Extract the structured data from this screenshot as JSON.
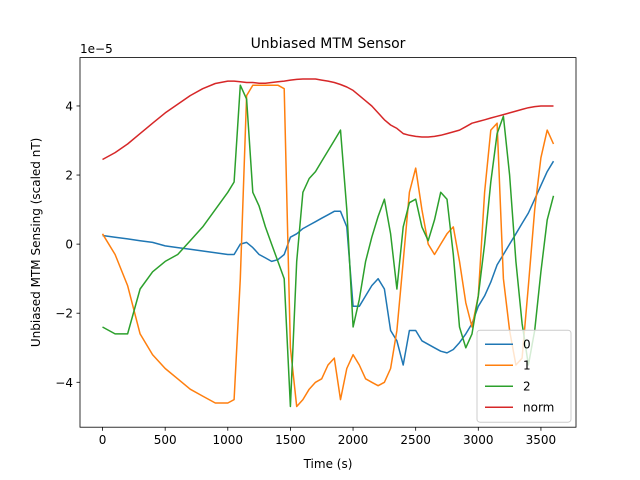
{
  "chart_data": {
    "type": "line",
    "title": "Unbiased MTM Sensor",
    "xlabel": "Time (s)",
    "ylabel": "Unbiased MTM Sensing (scaled nT)",
    "y_scale_label": "1e−5",
    "xlim": [
      -180,
      3780
    ],
    "ylim": [
      -5.3,
      5.4
    ],
    "xticks": [
      0,
      500,
      1000,
      1500,
      2000,
      2500,
      3000,
      3500
    ],
    "yticks": [
      -4,
      -2,
      0,
      2,
      4
    ],
    "grid": false,
    "legend_position": "lower-right",
    "x": [
      0,
      100,
      200,
      300,
      400,
      500,
      600,
      700,
      800,
      900,
      1000,
      1050,
      1100,
      1150,
      1200,
      1250,
      1300,
      1350,
      1400,
      1450,
      1500,
      1550,
      1600,
      1650,
      1700,
      1750,
      1800,
      1850,
      1900,
      1950,
      2000,
      2050,
      2100,
      2150,
      2200,
      2250,
      2300,
      2350,
      2400,
      2450,
      2500,
      2550,
      2600,
      2650,
      2700,
      2750,
      2800,
      2850,
      2900,
      2950,
      3000,
      3050,
      3100,
      3150,
      3200,
      3250,
      3300,
      3350,
      3400,
      3450,
      3500,
      3550,
      3600
    ],
    "series": [
      {
        "name": "0",
        "color": "#1f77b4",
        "values": [
          0.25,
          0.2,
          0.15,
          0.1,
          0.05,
          -0.05,
          -0.1,
          -0.15,
          -0.2,
          -0.25,
          -0.3,
          -0.3,
          0.0,
          0.05,
          -0.1,
          -0.3,
          -0.4,
          -0.5,
          -0.45,
          -0.3,
          0.2,
          0.3,
          0.45,
          0.55,
          0.65,
          0.75,
          0.85,
          0.95,
          0.95,
          0.5,
          -1.8,
          -1.8,
          -1.5,
          -1.2,
          -1.0,
          -1.3,
          -2.5,
          -2.8,
          -3.5,
          -2.5,
          -2.5,
          -2.8,
          -2.9,
          -3.0,
          -3.1,
          -3.15,
          -3.05,
          -2.85,
          -2.6,
          -2.3,
          -1.8,
          -1.5,
          -1.1,
          -0.6,
          -0.3,
          0.0,
          0.3,
          0.6,
          0.9,
          1.3,
          1.7,
          2.1,
          2.4
        ]
      },
      {
        "name": "1",
        "color": "#ff7f0e",
        "values": [
          0.3,
          -0.3,
          -1.2,
          -2.6,
          -3.2,
          -3.6,
          -3.9,
          -4.2,
          -4.4,
          -4.6,
          -4.6,
          -4.5,
          -1.0,
          4.3,
          4.6,
          4.6,
          4.6,
          4.6,
          4.6,
          4.5,
          -3.0,
          -4.7,
          -4.5,
          -4.2,
          -4.0,
          -3.9,
          -3.5,
          -3.3,
          -4.5,
          -3.6,
          -3.2,
          -3.5,
          -3.9,
          -4.0,
          -4.1,
          -4.0,
          -3.6,
          -2.5,
          -0.5,
          1.5,
          2.2,
          1.0,
          0.0,
          -0.3,
          0.0,
          0.3,
          0.5,
          -0.5,
          -1.7,
          -2.4,
          -1.5,
          1.5,
          3.3,
          3.5,
          -1.0,
          -2.5,
          -3.5,
          -3.3,
          -1.2,
          1.0,
          2.5,
          3.3,
          2.9
        ]
      },
      {
        "name": "2",
        "color": "#2ca02c",
        "values": [
          -2.4,
          -2.6,
          -2.6,
          -1.3,
          -0.8,
          -0.5,
          -0.3,
          0.1,
          0.5,
          1.0,
          1.5,
          1.8,
          4.6,
          4.2,
          1.5,
          1.1,
          0.5,
          0.0,
          -0.5,
          -1.0,
          -4.7,
          -0.5,
          1.5,
          1.9,
          2.1,
          2.4,
          2.7,
          3.0,
          3.3,
          1.0,
          -2.4,
          -1.6,
          -0.5,
          0.2,
          0.8,
          1.3,
          0.3,
          -1.3,
          0.5,
          1.2,
          1.3,
          0.5,
          0.1,
          0.7,
          1.5,
          1.3,
          -0.3,
          -2.4,
          -3.0,
          -2.6,
          -1.5,
          0.0,
          1.8,
          3.2,
          3.7,
          2.0,
          -0.5,
          -2.3,
          -3.5,
          -2.5,
          -0.8,
          0.7,
          1.4
        ]
      },
      {
        "name": "norm",
        "color": "#d62728",
        "values": [
          2.45,
          2.65,
          2.9,
          3.2,
          3.5,
          3.8,
          4.05,
          4.3,
          4.5,
          4.65,
          4.72,
          4.72,
          4.7,
          4.68,
          4.68,
          4.66,
          4.66,
          4.68,
          4.7,
          4.72,
          4.75,
          4.77,
          4.78,
          4.78,
          4.78,
          4.75,
          4.72,
          4.68,
          4.62,
          4.55,
          4.45,
          4.3,
          4.15,
          4.0,
          3.8,
          3.6,
          3.45,
          3.35,
          3.2,
          3.15,
          3.12,
          3.1,
          3.1,
          3.12,
          3.15,
          3.2,
          3.25,
          3.3,
          3.4,
          3.5,
          3.55,
          3.6,
          3.65,
          3.7,
          3.75,
          3.8,
          3.85,
          3.9,
          3.95,
          3.98,
          4.0,
          4.0,
          4.0
        ]
      }
    ]
  }
}
